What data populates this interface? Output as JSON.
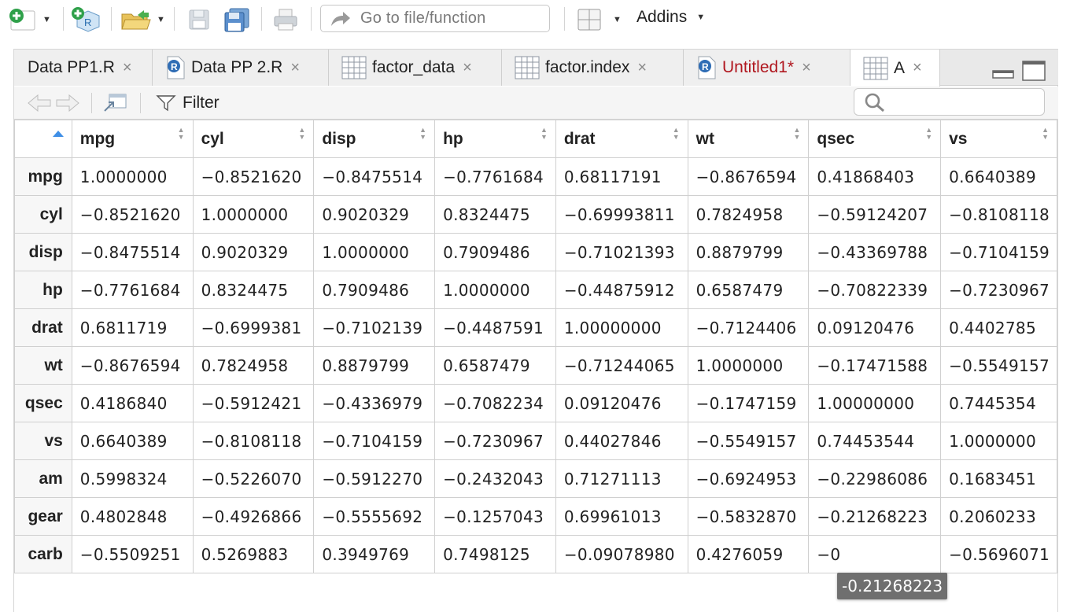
{
  "toolbar": {
    "goto_placeholder": "Go to file/function",
    "addins_label": "Addins"
  },
  "tabs": [
    {
      "label": "Data PP1.R",
      "icon": "r-script-icon",
      "close": "×"
    },
    {
      "label": "Data PP 2.R",
      "icon": "r-script-icon",
      "close": "×"
    },
    {
      "label": "factor_data",
      "icon": "table-icon",
      "close": "×"
    },
    {
      "label": "factor.index",
      "icon": "table-icon",
      "close": "×"
    },
    {
      "label": "Untitled1*",
      "icon": "r-script-icon",
      "close": "×"
    },
    {
      "label": "A",
      "icon": "table-icon",
      "close": "×"
    }
  ],
  "subbar": {
    "filter_label": "Filter"
  },
  "table": {
    "columns": [
      "mpg",
      "cyl",
      "disp",
      "hp",
      "drat",
      "wt",
      "qsec",
      "vs"
    ],
    "rows": [
      {
        "name": "mpg",
        "cells": [
          "1.0000000",
          "−0.8521620",
          "−0.8475514",
          "−0.7761684",
          "0.68117191",
          "−0.8676594",
          "0.41868403",
          "0.6640389"
        ]
      },
      {
        "name": "cyl",
        "cells": [
          "−0.8521620",
          "1.0000000",
          "0.9020329",
          "0.8324475",
          "−0.69993811",
          "0.7824958",
          "−0.59124207",
          "−0.8108118"
        ]
      },
      {
        "name": "disp",
        "cells": [
          "−0.8475514",
          "0.9020329",
          "1.0000000",
          "0.7909486",
          "−0.71021393",
          "0.8879799",
          "−0.43369788",
          "−0.7104159"
        ]
      },
      {
        "name": "hp",
        "cells": [
          "−0.7761684",
          "0.8324475",
          "0.7909486",
          "1.0000000",
          "−0.44875912",
          "0.6587479",
          "−0.70822339",
          "−0.7230967"
        ]
      },
      {
        "name": "drat",
        "cells": [
          "0.6811719",
          "−0.6999381",
          "−0.7102139",
          "−0.4487591",
          "1.00000000",
          "−0.7124406",
          "0.09120476",
          "0.4402785"
        ]
      },
      {
        "name": "wt",
        "cells": [
          "−0.8676594",
          "0.7824958",
          "0.8879799",
          "0.6587479",
          "−0.71244065",
          "1.0000000",
          "−0.17471588",
          "−0.5549157"
        ]
      },
      {
        "name": "qsec",
        "cells": [
          "0.4186840",
          "−0.5912421",
          "−0.4336979",
          "−0.7082234",
          "0.09120476",
          "−0.1747159",
          "1.00000000",
          "0.7445354"
        ]
      },
      {
        "name": "vs",
        "cells": [
          "0.6640389",
          "−0.8108118",
          "−0.7104159",
          "−0.7230967",
          "0.44027846",
          "−0.5549157",
          "0.74453544",
          "1.0000000"
        ]
      },
      {
        "name": "am",
        "cells": [
          "0.5998324",
          "−0.5226070",
          "−0.5912270",
          "−0.2432043",
          "0.71271113",
          "−0.6924953",
          "−0.22986086",
          "0.1683451"
        ]
      },
      {
        "name": "gear",
        "cells": [
          "0.4802848",
          "−0.4926866",
          "−0.5555692",
          "−0.1257043",
          "0.69961013",
          "−0.5832870",
          "−0.21268223",
          "0.2060233"
        ]
      },
      {
        "name": "carb",
        "cells": [
          "−0.5509251",
          "0.5269883",
          "0.3949769",
          "0.7498125",
          "−0.09078980",
          "0.4276059",
          "−0",
          "−0.5696071"
        ]
      }
    ]
  },
  "tooltip": "-0.21268223",
  "colors": {
    "accent": "#3f8fe6",
    "unsaved_tab": "#b0171f",
    "tooltip_bg": "#6f6f6f"
  }
}
